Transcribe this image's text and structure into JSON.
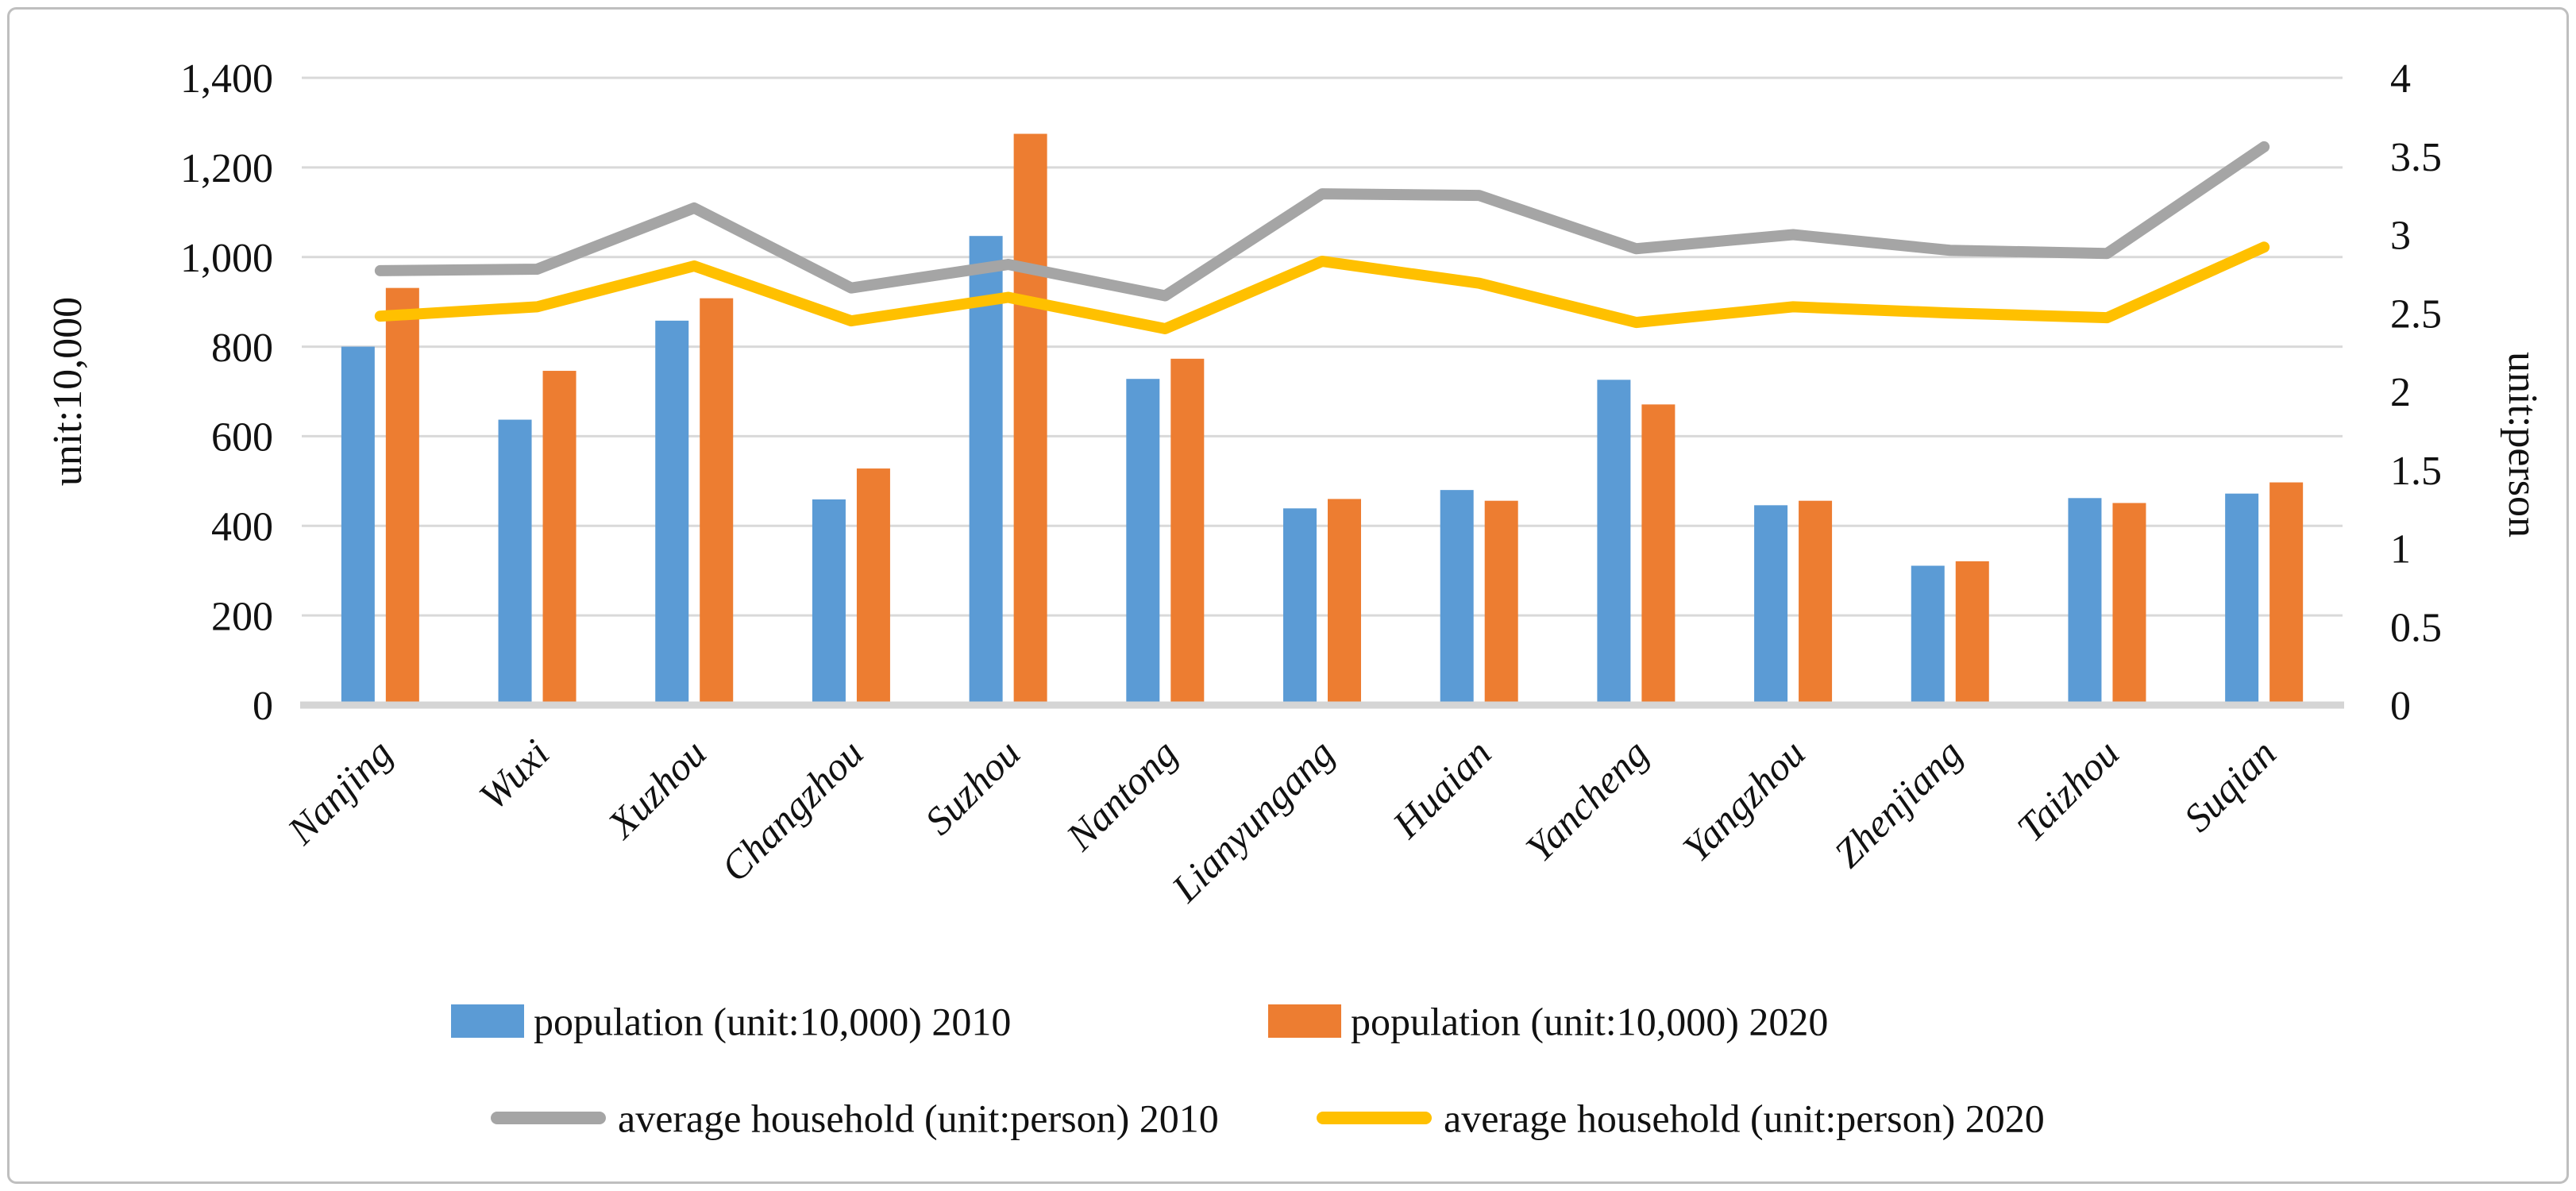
{
  "page": {
    "background": "#ffffff",
    "border_color": "#bfbfbf"
  },
  "chart_data": {
    "type": "bar+line combo (dual axis)",
    "title": "",
    "categories": [
      "Nanjing",
      "Wuxi",
      "Xuzhou",
      "Changzhou",
      "Suzhou",
      "Nantong",
      "Lianyungang",
      "Huaian",
      "Yancheng",
      "Yangzhou",
      "Zhenjiang",
      "Taizhou",
      "Suqian"
    ],
    "series": [
      {
        "name": "population (unit:10,000)  2010",
        "kind": "bar",
        "axis": "left",
        "color": "#5B9BD5",
        "values": [
          800,
          637,
          858,
          459,
          1047,
          728,
          439,
          480,
          726,
          446,
          311,
          462,
          472
        ]
      },
      {
        "name": "population (unit:10,000)  2020",
        "kind": "bar",
        "axis": "left",
        "color": "#ED7D31",
        "values": [
          931,
          746,
          908,
          528,
          1275,
          773,
          460,
          456,
          671,
          456,
          321,
          451,
          497
        ]
      },
      {
        "name": "average household (unit:person) 2010",
        "kind": "line",
        "axis": "right",
        "color": "#A5A5A5",
        "values": [
          2.77,
          2.78,
          3.17,
          2.66,
          2.81,
          2.61,
          3.26,
          3.25,
          2.91,
          3.0,
          2.9,
          2.88,
          3.56
        ]
      },
      {
        "name": "average household (unit:person) 2020",
        "kind": "line",
        "axis": "right",
        "color": "#FFC000",
        "values": [
          2.48,
          2.54,
          2.8,
          2.45,
          2.6,
          2.4,
          2.83,
          2.69,
          2.44,
          2.54,
          2.5,
          2.47,
          2.92
        ]
      }
    ],
    "left_axis": {
      "title": "unit:10,000",
      "min": 0,
      "max": 1400,
      "step": 200,
      "ticks": [
        0,
        200,
        400,
        600,
        800,
        1000,
        1200,
        1400
      ],
      "tick_labels": [
        "0",
        "200",
        "400",
        "600",
        "800",
        "1,000",
        "1,200",
        "1,400"
      ]
    },
    "right_axis": {
      "title": "unit:person",
      "min": 0,
      "max": 4,
      "step": 0.5,
      "ticks": [
        0,
        0.5,
        1,
        1.5,
        2,
        2.5,
        3,
        3.5,
        4
      ],
      "tick_labels": [
        "0",
        "0.5",
        "1",
        "1.5",
        "2",
        "2.5",
        "3",
        "3.5",
        "4"
      ]
    },
    "grid": "horizontal gridlines every 200 left-axis units, light gray",
    "legend_position": "bottom, two rows",
    "x_label_rotation_deg": -45
  }
}
